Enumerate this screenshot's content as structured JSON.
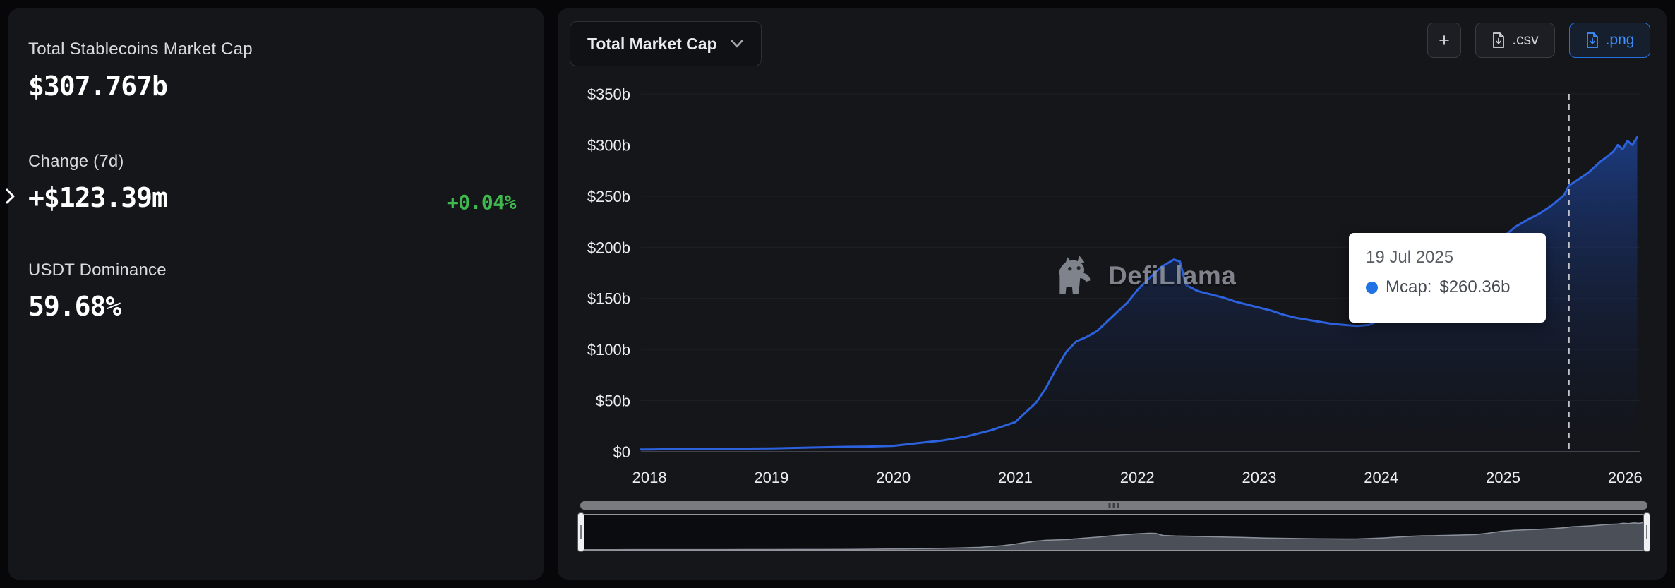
{
  "left_panel": {
    "mcap_label": "Total Stablecoins Market Cap",
    "mcap_value": "$307.767b",
    "change_label": "Change (7d)",
    "change_value": "+$123.39m",
    "change_pct": "+0.04%",
    "dominance_label": "USDT Dominance",
    "dominance_value": "59.68%"
  },
  "toolbar": {
    "metric_label": "Total Market Cap",
    "plus_label": "+",
    "csv_label": ".csv",
    "png_label": ".png"
  },
  "watermark": {
    "text": "DefiLlama"
  },
  "tooltip": {
    "date": "19 Jul 2025",
    "label": "Mcap:",
    "value": "$260.36b",
    "dot_color": "#2172e5"
  },
  "colors": {
    "line_blue": "#2c62dd",
    "green": "#3fb84e",
    "png_accent": "#2172e5",
    "card_bg": "#15161a",
    "page_bg": "#07070a"
  },
  "chart_data": {
    "type": "area",
    "title": "Total Market Cap",
    "xlabel": "",
    "ylabel": "",
    "grid": true,
    "legend": "none",
    "xlim": [
      2017.93,
      2026.12
    ],
    "ylim": [
      0,
      350
    ],
    "x_ticks": [
      2018,
      2019,
      2020,
      2021,
      2022,
      2023,
      2024,
      2025,
      2026
    ],
    "y_ticks": [
      {
        "v": 0,
        "label": "$0"
      },
      {
        "v": 50,
        "label": "$50b"
      },
      {
        "v": 100,
        "label": "$100b"
      },
      {
        "v": 150,
        "label": "$150b"
      },
      {
        "v": 200,
        "label": "$200b"
      },
      {
        "v": 250,
        "label": "$250b"
      },
      {
        "v": 300,
        "label": "$300b"
      },
      {
        "v": 350,
        "label": "$350b"
      }
    ],
    "series": [
      {
        "name": "Mcap",
        "color": "#2c62dd",
        "points": [
          [
            2017.93,
            2.2
          ],
          [
            2018.0,
            2.3
          ],
          [
            2018.2,
            2.6
          ],
          [
            2018.4,
            2.9
          ],
          [
            2018.6,
            3.0
          ],
          [
            2018.8,
            3.1
          ],
          [
            2019.0,
            3.3
          ],
          [
            2019.2,
            3.8
          ],
          [
            2019.4,
            4.3
          ],
          [
            2019.6,
            4.8
          ],
          [
            2019.8,
            5.1
          ],
          [
            2020.0,
            5.8
          ],
          [
            2020.2,
            8.5
          ],
          [
            2020.4,
            11.0
          ],
          [
            2020.6,
            15.0
          ],
          [
            2020.8,
            21.0
          ],
          [
            2021.0,
            29
          ],
          [
            2021.08,
            38
          ],
          [
            2021.17,
            48
          ],
          [
            2021.25,
            62
          ],
          [
            2021.33,
            80
          ],
          [
            2021.42,
            98
          ],
          [
            2021.5,
            108
          ],
          [
            2021.58,
            112
          ],
          [
            2021.67,
            118
          ],
          [
            2021.75,
            127
          ],
          [
            2021.83,
            136
          ],
          [
            2021.92,
            146
          ],
          [
            2022.0,
            158
          ],
          [
            2022.1,
            170
          ],
          [
            2022.2,
            181
          ],
          [
            2022.3,
            188
          ],
          [
            2022.35,
            186
          ],
          [
            2022.4,
            163
          ],
          [
            2022.5,
            157
          ],
          [
            2022.6,
            154
          ],
          [
            2022.7,
            151
          ],
          [
            2022.8,
            147
          ],
          [
            2022.9,
            144
          ],
          [
            2023.0,
            141
          ],
          [
            2023.1,
            138
          ],
          [
            2023.2,
            134
          ],
          [
            2023.3,
            131
          ],
          [
            2023.4,
            129
          ],
          [
            2023.5,
            127
          ],
          [
            2023.6,
            125
          ],
          [
            2023.7,
            124
          ],
          [
            2023.8,
            123
          ],
          [
            2023.9,
            124
          ],
          [
            2024.0,
            129
          ],
          [
            2024.1,
            135
          ],
          [
            2024.2,
            144
          ],
          [
            2024.3,
            153
          ],
          [
            2024.4,
            159
          ],
          [
            2024.5,
            161
          ],
          [
            2024.6,
            164
          ],
          [
            2024.7,
            168
          ],
          [
            2024.8,
            172
          ],
          [
            2024.9,
            188
          ],
          [
            2025.0,
            210
          ],
          [
            2025.1,
            220
          ],
          [
            2025.2,
            227
          ],
          [
            2025.3,
            233
          ],
          [
            2025.4,
            241
          ],
          [
            2025.5,
            251
          ],
          [
            2025.54,
            260.36
          ],
          [
            2025.6,
            265
          ],
          [
            2025.7,
            273
          ],
          [
            2025.8,
            284
          ],
          [
            2025.9,
            293
          ],
          [
            2025.94,
            300
          ],
          [
            2025.98,
            296
          ],
          [
            2026.02,
            304
          ],
          [
            2026.06,
            300
          ],
          [
            2026.1,
            307.77
          ]
        ]
      }
    ],
    "hover": {
      "x": 2025.54,
      "date": "19 Jul 2025",
      "series": "Mcap",
      "value_num": 260.36
    }
  }
}
